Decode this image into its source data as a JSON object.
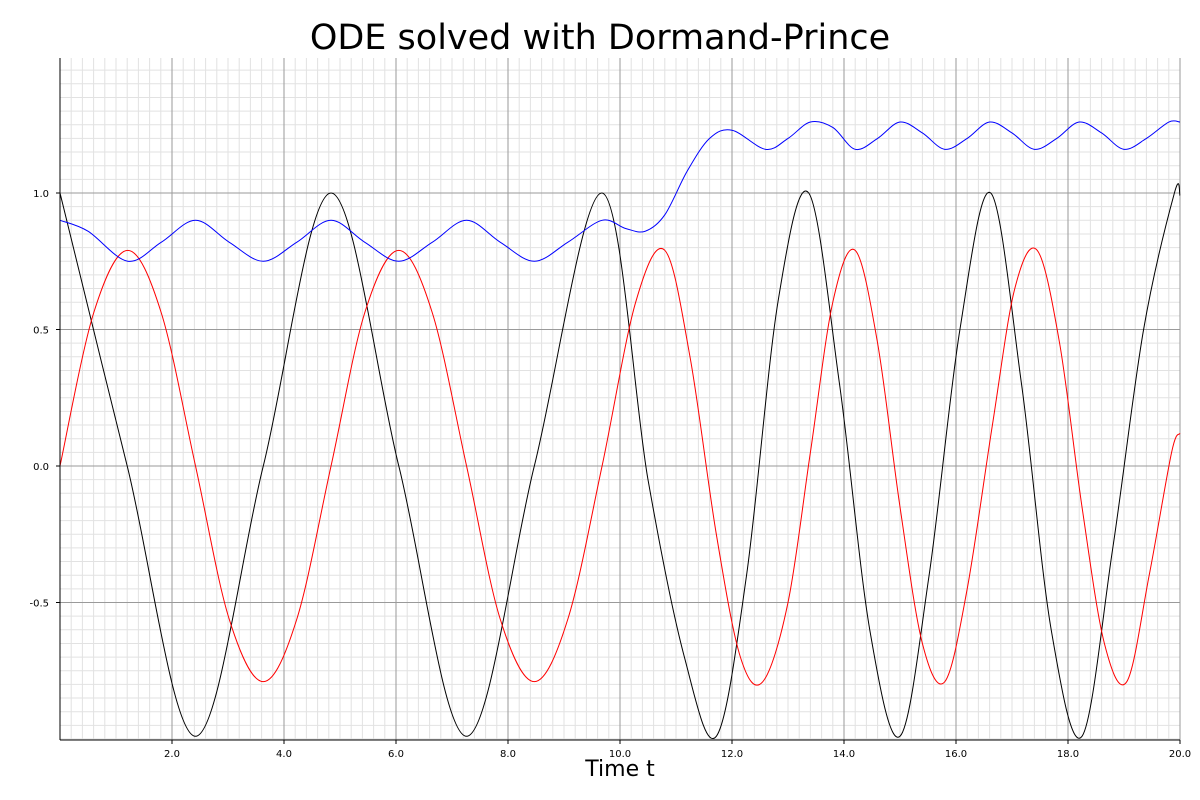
{
  "chart_data": {
    "type": "line",
    "title": "ODE solved with Dormand-Prince",
    "xlabel": "Time t",
    "ylabel": "",
    "xlim": [
      0,
      20
    ],
    "ylim": [
      -1.0,
      1.5
    ],
    "grid": true,
    "x_ticks": [
      "2.0",
      "4.0",
      "6.0",
      "8.0",
      "10.0",
      "12.0",
      "14.0",
      "16.0",
      "18.0",
      "20.0"
    ],
    "y_ticks": [
      "-0.5",
      "0.0",
      "0.5",
      "1.0"
    ],
    "series": [
      {
        "color": "#000000",
        "x": [
          0,
          1.2,
          2.42,
          3.63,
          4.84,
          6.05,
          7.26,
          8.47,
          9.68,
          10.5,
          11.15,
          11.72,
          12.26,
          12.82,
          13.37,
          13.92,
          14.46,
          15.0,
          15.52,
          16.07,
          16.62,
          17.17,
          17.7,
          18.25,
          18.8,
          19.35,
          19.9,
          20.0
        ],
        "values": [
          1.0,
          0.0,
          -0.99,
          0.0,
          1.0,
          0.0,
          -0.99,
          0.0,
          1.0,
          -0.05,
          -0.7,
          -0.99,
          -0.4,
          0.6,
          1.0,
          0.3,
          -0.6,
          -0.99,
          -0.4,
          0.5,
          1.0,
          0.3,
          -0.6,
          -0.99,
          -0.3,
          0.5,
          1.0,
          0.99
        ]
      },
      {
        "color": "#ff0000",
        "x": [
          0,
          0.6,
          1.21,
          1.81,
          2.42,
          3.02,
          3.63,
          4.23,
          4.84,
          5.44,
          6.05,
          6.65,
          7.26,
          7.86,
          8.47,
          9.07,
          9.68,
          10.28,
          10.8,
          11.25,
          11.72,
          12.15,
          12.55,
          13.0,
          13.4,
          13.8,
          14.2,
          14.6,
          15.0,
          15.4,
          15.8,
          16.2,
          16.65,
          17.05,
          17.45,
          17.85,
          18.25,
          18.65,
          19.05,
          19.45,
          19.85,
          20.0
        ],
        "values": [
          0.0,
          0.56,
          0.79,
          0.56,
          0.0,
          -0.56,
          -0.79,
          -0.56,
          0.0,
          0.56,
          0.79,
          0.56,
          0.0,
          -0.56,
          -0.79,
          -0.56,
          0.0,
          0.6,
          0.79,
          0.4,
          -0.25,
          -0.7,
          -0.79,
          -0.5,
          0.05,
          0.6,
          0.79,
          0.45,
          -0.15,
          -0.65,
          -0.79,
          -0.45,
          0.15,
          0.65,
          0.79,
          0.45,
          -0.15,
          -0.65,
          -0.79,
          -0.4,
          0.05,
          0.12
        ]
      },
      {
        "color": "#0000ff",
        "x": [
          0,
          0.5,
          1.21,
          1.81,
          2.42,
          3.02,
          3.63,
          4.23,
          4.84,
          5.44,
          6.05,
          6.65,
          7.26,
          7.86,
          8.47,
          9.07,
          9.68,
          10.1,
          10.45,
          10.8,
          11.2,
          11.6,
          12.0,
          12.6,
          13.0,
          13.4,
          13.8,
          14.2,
          14.6,
          15.0,
          15.4,
          15.8,
          16.2,
          16.6,
          17.0,
          17.4,
          17.8,
          18.2,
          18.6,
          19.0,
          19.4,
          19.8,
          20.0
        ],
        "values": [
          0.9,
          0.86,
          0.75,
          0.82,
          0.9,
          0.82,
          0.75,
          0.82,
          0.9,
          0.82,
          0.75,
          0.82,
          0.9,
          0.82,
          0.75,
          0.82,
          0.9,
          0.87,
          0.86,
          0.92,
          1.08,
          1.2,
          1.23,
          1.16,
          1.2,
          1.26,
          1.24,
          1.16,
          1.2,
          1.26,
          1.22,
          1.16,
          1.2,
          1.26,
          1.22,
          1.16,
          1.2,
          1.26,
          1.22,
          1.16,
          1.2,
          1.26,
          1.26
        ]
      }
    ]
  }
}
